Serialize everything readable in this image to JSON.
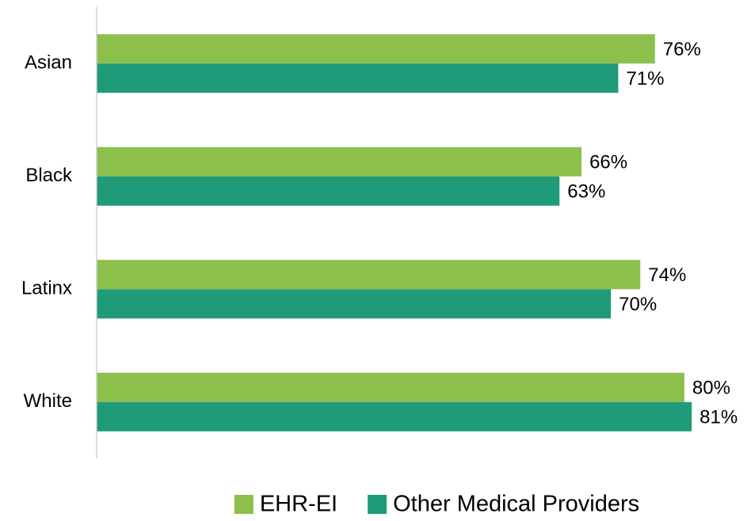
{
  "chart_data": {
    "type": "bar",
    "orientation": "horizontal",
    "categories": [
      "Asian",
      "Black",
      "Latinx",
      "White"
    ],
    "series": [
      {
        "name": "EHR-EI",
        "color": "#8cc04b",
        "values": [
          76,
          66,
          74,
          80
        ],
        "value_labels": [
          "76%",
          "66%",
          "74%",
          "80%"
        ]
      },
      {
        "name": "Other Medical Providers",
        "color": "#1f9b79",
        "values": [
          71,
          63,
          70,
          81
        ],
        "value_labels": [
          "71%",
          "63%",
          "70%",
          "81%"
        ]
      }
    ],
    "xlim": [
      0,
      84
    ],
    "legend": "bottom"
  }
}
